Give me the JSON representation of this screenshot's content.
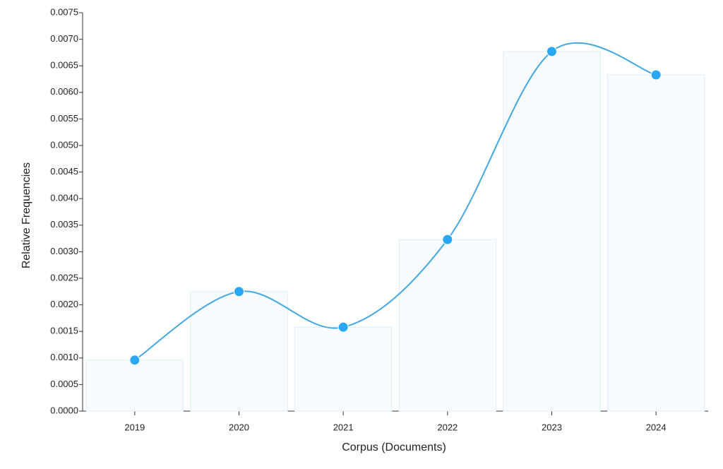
{
  "chart_data": {
    "type": "line",
    "bars": true,
    "x_label": "Corpus (Documents)",
    "y_label": "Relative Frequencies",
    "categories": [
      "2019",
      "2020",
      "2021",
      "2022",
      "2023",
      "2024"
    ],
    "values": [
      0.00096,
      0.00225,
      0.00158,
      0.00323,
      0.00677,
      0.00633
    ],
    "color": "#41a8e0",
    "point_color": "#2aa7f2",
    "bar_fill": "#f8fbfd",
    "bar_stroke": "#d9eff8",
    "ylim": [
      0,
      0.0075
    ],
    "yticks": [
      {
        "value": 0,
        "label": "0.0000"
      },
      {
        "value": 0.0005,
        "label": "0.0005"
      },
      {
        "value": 0.001,
        "label": "0.0010"
      },
      {
        "value": 0.0015,
        "label": "0.0015"
      },
      {
        "value": 0.002,
        "label": "0.0020"
      },
      {
        "value": 0.0025,
        "label": "0.0025"
      },
      {
        "value": 0.003,
        "label": "0.0030"
      },
      {
        "value": 0.0035,
        "label": "0.0035"
      },
      {
        "value": 0.004,
        "label": "0.0040"
      },
      {
        "value": 0.0045,
        "label": "0.0045"
      },
      {
        "value": 0.005,
        "label": "0.0050"
      },
      {
        "value": 0.0055,
        "label": "0.0055"
      },
      {
        "value": 0.006,
        "label": "0.0060"
      },
      {
        "value": 0.0065,
        "label": "0.0065"
      },
      {
        "value": 0.007,
        "label": "0.0070"
      },
      {
        "value": 0.0075,
        "label": "0.0075"
      }
    ],
    "grid": false
  }
}
